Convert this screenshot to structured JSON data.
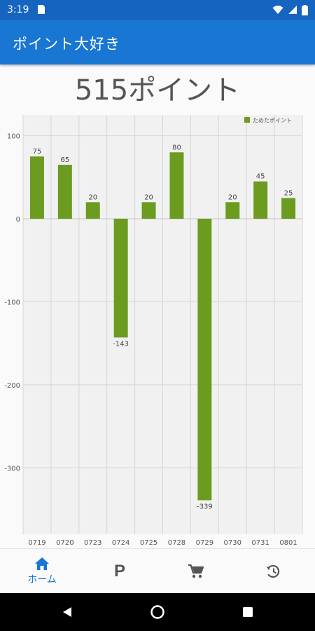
{
  "status_bar": {
    "time": "3:19",
    "icons": [
      "sim-card-icon",
      "wifi-icon",
      "signal-icon",
      "battery-icon"
    ]
  },
  "app_bar": {
    "title": "ポイント大好き"
  },
  "points_total": "515ポイント",
  "chart_data": {
    "type": "bar",
    "categories": [
      "0719",
      "0720",
      "0723",
      "0724",
      "0725",
      "0728",
      "0729",
      "0730",
      "0731",
      "0801"
    ],
    "series": [
      {
        "name": "ためたポイント",
        "values": [
          75,
          65,
          20,
          -143,
          20,
          80,
          -339,
          20,
          45,
          25
        ],
        "color": "#6b9b1f"
      }
    ],
    "data_labels": [
      "75",
      "65",
      "20",
      "-143",
      "20",
      "80",
      "-339",
      "20",
      "45",
      "25"
    ],
    "y_ticks": [
      100,
      0,
      -100,
      -200,
      -300
    ],
    "y_tick_labels": [
      "100",
      "0",
      "-100",
      "-200",
      "-300"
    ],
    "ylim": [
      -380,
      125
    ],
    "grid": true,
    "legend": "top-right"
  },
  "bottom_nav": {
    "items": [
      {
        "icon": "home-icon",
        "label": "ホーム",
        "active": true
      },
      {
        "icon": "points-icon",
        "glyph": "P"
      },
      {
        "icon": "cart-icon"
      },
      {
        "icon": "history-icon"
      }
    ],
    "active_color": "#1976d2"
  },
  "system_nav": [
    "back-icon",
    "home-circle-icon",
    "recents-icon"
  ]
}
